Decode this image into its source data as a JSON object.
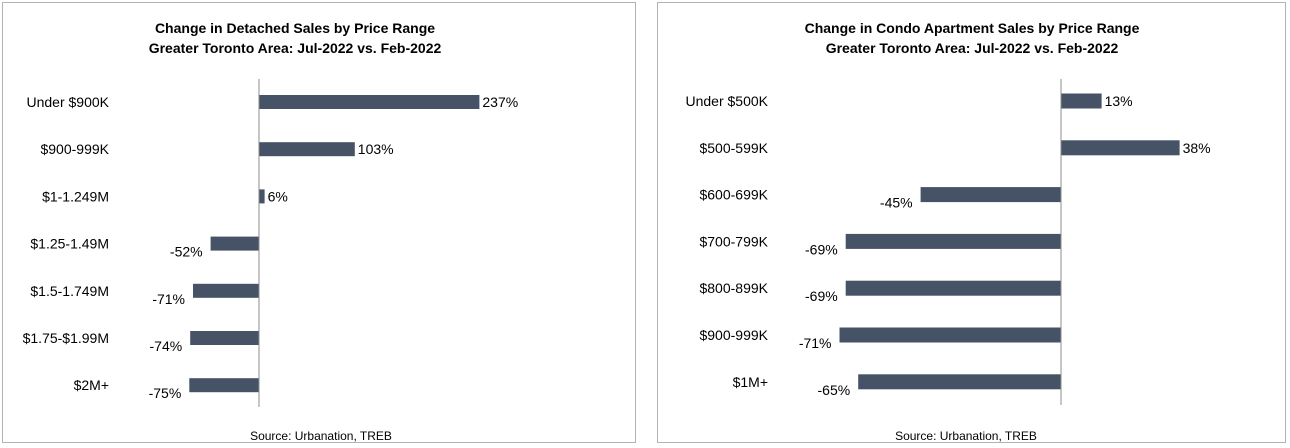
{
  "colors": {
    "bar": "#465266",
    "axis": "#8c8c8c",
    "border": "#b3b3b3"
  },
  "chart_data": [
    {
      "type": "bar",
      "orientation": "horizontal",
      "title": "Change in Detached Sales by Price Range",
      "subtitle": "Greater Toronto Area: Jul-2022 vs. Feb-2022",
      "categories": [
        "Under $900K",
        "$900-999K",
        "$1-1.249M",
        "$1.25-1.49M",
        "$1.5-1.749M",
        "$1.75-$1.99M",
        "$2M+"
      ],
      "values": [
        237,
        103,
        6,
        -52,
        -71,
        -74,
        -75
      ],
      "data_labels": [
        "237%",
        "103%",
        "6%",
        "-52%",
        "-71%",
        "-74%",
        "-75%"
      ],
      "value_unit": "%",
      "grid": false,
      "legend": "none",
      "source": "Source: Urbanation, TREB"
    },
    {
      "type": "bar",
      "orientation": "horizontal",
      "title": "Change in Condo Apartment Sales by Price Range",
      "subtitle": "Greater Toronto Area: Jul-2022 vs. Feb-2022",
      "categories": [
        "Under $500K",
        "$500-599K",
        "$600-699K",
        "$700-799K",
        "$800-899K",
        "$900-999K",
        "$1M+"
      ],
      "values": [
        13,
        38,
        -45,
        -69,
        -69,
        -71,
        -65
      ],
      "data_labels": [
        "13%",
        "38%",
        "-45%",
        "-69%",
        "-69%",
        "-71%",
        "-65%"
      ],
      "value_unit": "%",
      "grid": false,
      "legend": "none",
      "source": "Source: Urbanation, TREB"
    }
  ]
}
